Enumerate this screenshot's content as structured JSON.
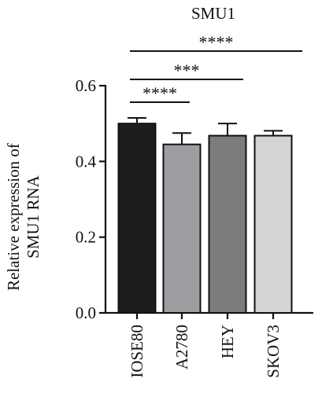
{
  "chart_data": {
    "type": "bar",
    "title": "SMU1",
    "ylabel_lines": [
      "Relative expression of",
      "SMU1 RNA"
    ],
    "xlabel": "",
    "categories": [
      "IOSE80",
      "A2780",
      "HEY",
      "SKOV3"
    ],
    "values": [
      0.5,
      0.445,
      0.468,
      0.468
    ],
    "errors": [
      0.015,
      0.03,
      0.032,
      0.013
    ],
    "bar_colors": [
      "#1f1c1d",
      "#9d9ea2",
      "#7b7d7b",
      "#d3d4d3"
    ],
    "ylim": [
      0.0,
      0.6
    ],
    "yticks": [
      0.0,
      0.2,
      0.4,
      0.6
    ],
    "ytick_labels": [
      "0.0",
      "0.2",
      "0.4",
      "0.6"
    ],
    "grid": false,
    "legend": "none",
    "significance": [
      {
        "from": "IOSE80",
        "to": "SKOV3",
        "label": "****"
      },
      {
        "from": "IOSE80",
        "to": "HEY",
        "label": "***"
      },
      {
        "from": "IOSE80",
        "to": "A2780",
        "label": "****"
      }
    ]
  }
}
